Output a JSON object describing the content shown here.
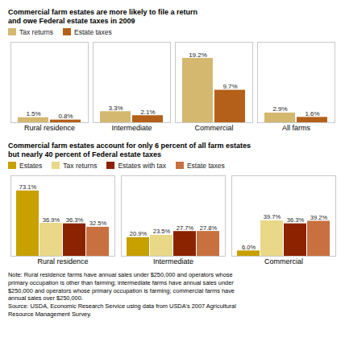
{
  "chart_data": [
    {
      "type": "bar",
      "title": "Commercial farm estates are more likely to file a return\nand owe Federal estate taxes in 2009",
      "categories": [
        "Rural residence",
        "Intermediate",
        "Commercial",
        "All farms"
      ],
      "series": [
        {
          "name": "Tax returns",
          "color": "#d4b870",
          "values": [
            1.5,
            3.3,
            19.2,
            2.9
          ],
          "value_labels": [
            "1.5%",
            "3.3%",
            "19.2%",
            "2.9%"
          ]
        },
        {
          "name": "Estate taxes",
          "color": "#b5601a",
          "values": [
            0.8,
            2.1,
            9.7,
            1.6
          ],
          "value_labels": [
            "0.8%",
            "2.1%",
            "9.7%",
            "1.6%"
          ]
        }
      ],
      "ylim": [
        0,
        24
      ],
      "grid": false,
      "legend": "upper left",
      "data_labels": true,
      "tick_labels": "x"
    },
    {
      "type": "bar",
      "title": "Commercial farm estates account for only 6 percent of all farm estates\nbut nearly 40 percent of Federal estate taxes",
      "categories": [
        "Rural residence",
        "Intermediate",
        "Commercial"
      ],
      "series": [
        {
          "name": "Estates",
          "color": "#c8a000",
          "values": [
            73.1,
            20.9,
            6.0
          ],
          "value_labels": [
            "73.1%",
            "20.9%",
            "6.0%"
          ]
        },
        {
          "name": "Tax returns",
          "color": "#e8d888",
          "values": [
            36.9,
            23.5,
            39.7
          ],
          "value_labels": [
            "36.9%",
            "23.5%",
            "39.7%"
          ]
        },
        {
          "name": "Estates with tax",
          "color": "#8b2200",
          "values": [
            36.3,
            27.7,
            36.3
          ],
          "value_labels": [
            "36.3%",
            "27.7%",
            "36.3%"
          ]
        },
        {
          "name": "Estate taxes",
          "color": "#c87040",
          "values": [
            32.5,
            27.8,
            39.2
          ],
          "value_labels": [
            "32.5%",
            "27.8%",
            "39.2%"
          ]
        }
      ],
      "ylim": [
        0,
        90
      ],
      "grid": false,
      "legend": "upper left",
      "data_labels": true,
      "tick_labels": "x",
      "annotations": [
        "Note: Rural residence farms have annual sales under $250,000 and operators whose\nprimary occupation is other than farming; intermediate farms have annual sales under\n$250,000 and operators whose primary occupation is farming; commercial farms have\nannual sales over $250,000.\nSource: USDA, Economic Research Service using data from USDA's 2007 Agricultural\nResource Management Survey."
      ]
    }
  ]
}
